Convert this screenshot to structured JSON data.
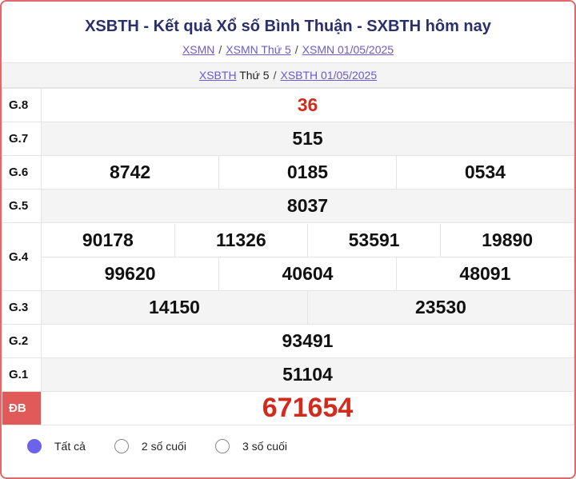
{
  "header": {
    "title": "XSBTH - Kết quả Xổ số Bình Thuận - SXBTH hôm nay",
    "breadcrumbs": [
      "XSMN",
      "XSMN Thứ 5",
      "XSMN 01/05/2025"
    ],
    "sub_link1": "XSBTH",
    "sub_plain1": "Thứ 5",
    "sub_link2": "XSBTH 01/05/2025",
    "separator": "/"
  },
  "results": {
    "g8": {
      "label": "G.8",
      "values": [
        "36"
      ]
    },
    "g7": {
      "label": "G.7",
      "values": [
        "515"
      ]
    },
    "g6": {
      "label": "G.6",
      "values": [
        "8742",
        "0185",
        "0534"
      ]
    },
    "g5": {
      "label": "G.5",
      "values": [
        "8037"
      ]
    },
    "g4": {
      "label": "G.4",
      "values": [
        "90178",
        "11326",
        "53591",
        "19890",
        "99620",
        "40604",
        "48091"
      ]
    },
    "g3": {
      "label": "G.3",
      "values": [
        "14150",
        "23530"
      ]
    },
    "g2": {
      "label": "G.2",
      "values": [
        "93491"
      ]
    },
    "g1": {
      "label": "G.1",
      "values": [
        "51104"
      ]
    },
    "db": {
      "label": "ĐB",
      "values": [
        "671654"
      ]
    }
  },
  "filters": {
    "options": [
      "Tất cả",
      "2 số cuối",
      "3 số cuối"
    ],
    "selected": "Tất cả"
  },
  "colors": {
    "accent": "#6c63e8",
    "border": "#e06a6a",
    "prize_red": "#d22b1e",
    "title": "#2a2f6e"
  }
}
